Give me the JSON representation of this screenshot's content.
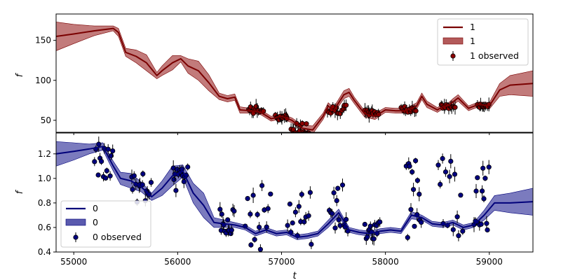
{
  "chart_data": [
    {
      "type": "line",
      "panel": "top",
      "xlabel": "",
      "ylabel": "f",
      "xlim": [
        54830,
        59420
      ],
      "ylim": [
        35,
        183
      ],
      "yticks": [
        50,
        100,
        150
      ],
      "xticks": [
        55000,
        56000,
        57000,
        58000,
        59000
      ],
      "legend_position": "top-right",
      "legend": [
        "1",
        "1",
        "1 observed"
      ],
      "colors": {
        "line": "#7a0000",
        "band": "#b35a5a",
        "marker": "#8b0000"
      },
      "series": [
        {
          "name": "1",
          "x": [
            54830,
            55000,
            55200,
            55380,
            55430,
            55500,
            55600,
            55700,
            55800,
            55850,
            55950,
            56030,
            56100,
            56200,
            56300,
            56400,
            56480,
            56550,
            56600,
            56700,
            56800,
            56900,
            57000,
            57100,
            57200,
            57300,
            57400,
            57450,
            57500,
            57600,
            57650,
            57700,
            57800,
            57900,
            58000,
            58100,
            58200,
            58300,
            58350,
            58400,
            58500,
            58550,
            58600,
            58650,
            58700,
            58800,
            58900,
            59000,
            59100,
            59200,
            59420
          ],
          "y": [
            155,
            158,
            162,
            165,
            160,
            135,
            130,
            122,
            106,
            112,
            122,
            127,
            118,
            112,
            97,
            80,
            77,
            79,
            63,
            62,
            60,
            52,
            55,
            50,
            40,
            38,
            55,
            68,
            62,
            82,
            85,
            75,
            58,
            55,
            63,
            62,
            62,
            68,
            80,
            70,
            63,
            67,
            68,
            73,
            78,
            65,
            70,
            68,
            88,
            94,
            96
          ],
          "band": [
            18,
            12,
            6,
            3,
            5,
            5,
            8,
            10,
            4,
            6,
            9,
            4,
            9,
            12,
            10,
            4,
            4,
            4,
            4,
            3,
            3,
            3,
            3,
            3,
            4,
            5,
            4,
            4,
            4,
            5,
            5,
            4,
            4,
            4,
            3,
            3,
            3,
            4,
            4,
            4,
            3,
            3,
            3,
            4,
            4,
            3,
            3,
            4,
            8,
            12,
            16
          ]
        }
      ],
      "observed": {
        "name": "1 observed",
        "segments": [
          [
            56680,
            56830,
            58,
            68
          ],
          [
            56940,
            57060,
            50,
            57
          ],
          [
            57090,
            57270,
            33,
            48
          ],
          [
            57440,
            57630,
            58,
            70
          ],
          [
            57800,
            57940,
            56,
            63
          ],
          [
            58150,
            58300,
            60,
            68
          ],
          [
            58530,
            58680,
            64,
            70
          ],
          [
            58880,
            59000,
            66,
            70
          ]
        ]
      }
    },
    {
      "type": "line",
      "panel": "bottom",
      "xlabel": "t",
      "ylabel": "f",
      "xlim": [
        54830,
        59420
      ],
      "ylim": [
        0.4,
        1.37
      ],
      "yticks": [
        0.4,
        0.6,
        0.8,
        1.0,
        1.2
      ],
      "ytick_labels": [
        "0.4",
        "0.6",
        "0.8",
        "1.0",
        "1.2"
      ],
      "xticks": [
        55000,
        56000,
        57000,
        58000,
        59000
      ],
      "legend_position": "bottom-left",
      "legend": [
        "0",
        "0",
        "0 observed"
      ],
      "colors": {
        "line": "#00007a",
        "band": "#5a5aae",
        "marker": "#000080"
      },
      "series": [
        {
          "name": "0",
          "x": [
            54830,
            55000,
            55150,
            55280,
            55380,
            55450,
            55550,
            55650,
            55750,
            55850,
            55950,
            56050,
            56150,
            56250,
            56350,
            56450,
            56550,
            56650,
            56750,
            56850,
            56950,
            57050,
            57150,
            57250,
            57350,
            57450,
            57550,
            57650,
            57750,
            57850,
            57950,
            58050,
            58150,
            58250,
            58350,
            58450,
            58550,
            58650,
            58750,
            58850,
            58950,
            59050,
            59200,
            59420
          ],
          "y": [
            1.2,
            1.22,
            1.24,
            1.26,
            1.1,
            1.0,
            0.98,
            0.93,
            0.85,
            0.92,
            1.02,
            1.06,
            0.88,
            0.78,
            0.64,
            0.63,
            0.62,
            0.6,
            0.55,
            0.58,
            0.55,
            0.56,
            0.52,
            0.53,
            0.55,
            0.63,
            0.72,
            0.58,
            0.56,
            0.55,
            0.57,
            0.58,
            0.57,
            0.7,
            0.68,
            0.63,
            0.62,
            0.64,
            0.6,
            0.62,
            0.7,
            0.8,
            0.8,
            0.81
          ],
          "band": [
            0.1,
            0.07,
            0.04,
            0.03,
            0.04,
            0.05,
            0.06,
            0.04,
            0.03,
            0.06,
            0.08,
            0.05,
            0.08,
            0.1,
            0.04,
            0.03,
            0.02,
            0.02,
            0.02,
            0.02,
            0.02,
            0.02,
            0.02,
            0.02,
            0.02,
            0.03,
            0.03,
            0.02,
            0.02,
            0.02,
            0.02,
            0.02,
            0.02,
            0.03,
            0.02,
            0.02,
            0.02,
            0.02,
            0.02,
            0.02,
            0.04,
            0.06,
            0.08,
            0.11
          ]
        }
      ],
      "observed": {
        "name": "0 observed",
        "segments": [
          [
            55200,
            55380,
            1.0,
            1.32
          ],
          [
            55550,
            55750,
            0.8,
            1.05
          ],
          [
            55950,
            56100,
            0.9,
            1.1
          ],
          [
            56400,
            56550,
            0.55,
            0.75
          ],
          [
            56650,
            56900,
            0.4,
            0.95
          ],
          [
            57050,
            57300,
            0.4,
            0.9
          ],
          [
            57450,
            57650,
            0.55,
            0.95
          ],
          [
            57800,
            57950,
            0.5,
            0.65
          ],
          [
            58200,
            58350,
            0.5,
            1.2
          ],
          [
            58500,
            58750,
            0.5,
            1.2
          ],
          [
            58850,
            59000,
            0.5,
            1.1
          ]
        ]
      }
    }
  ]
}
